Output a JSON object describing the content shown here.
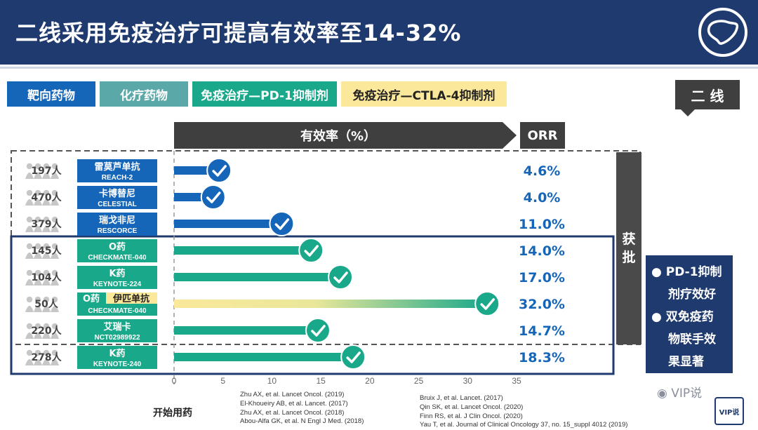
{
  "header": {
    "title": "二线采用免疫治疗可提高有效率至14-32%"
  },
  "legend": [
    {
      "label": "靶向药物",
      "color": "#1565b8"
    },
    {
      "label": "化疗药物",
      "color": "#5aa9a8"
    },
    {
      "label": "免疫治疗—PD-1抑制剂",
      "color": "#1aa88a"
    },
    {
      "label": "免疫治疗—CTLA-4抑制剂",
      "color": "#fbe89a"
    }
  ],
  "line_tag": "二 线",
  "axis_banner": "有效率（%）",
  "orr_banner": "ORR",
  "approved_label": [
    "获",
    "批"
  ],
  "notes": {
    "bullet1_a": "PD-1抑制",
    "bullet1_b": "剂疗效好",
    "bullet2_a": "双免疫药",
    "bullet2_b": "物联手效",
    "bullet2_c": "果显著"
  },
  "start_label": "开始用药",
  "references_left": [
    "Zhu AX, et al. Lancet Oncol. (2019)",
    "El-Khoueiry AB, et al. Lancet. (2017)",
    "Zhu AX, et al. Lancet Oncol. (2018)",
    "Abou-Alfa GK, et al. N Engl J Med. (2018)"
  ],
  "references_right": [
    "Bruix J, et al. Lancet. (2017)",
    "Qin SK, et al. Lancet Oncol. (2020)",
    "Finn RS, et al. J Clin Oncol. (2020)",
    "Yau T, et al. Journal of Clinical Oncology 37, no. 15_suppl 4012 (2019)"
  ],
  "watermark": "VIP说",
  "watermark_icon": "VIP说",
  "colors": {
    "navy": "#1f3a6e",
    "target_blue": "#1565b8",
    "pd1_green": "#1aa88a",
    "ctla4_yellow": "#fbe89a",
    "orr_text": "#1565b8"
  },
  "chart_data": {
    "type": "bar",
    "orientation": "horizontal",
    "xlabel": "有效率（%）",
    "xlim": [
      0,
      35
    ],
    "xticks": [
      0,
      5,
      10,
      15,
      20,
      25,
      30,
      35
    ],
    "rows": [
      {
        "n": "197人",
        "drug": "雷莫芦单抗",
        "trial": "REACH-2",
        "drug_type": "target",
        "value": 4.6,
        "orr": "4.6%"
      },
      {
        "n": "470人",
        "drug": "卡博替尼",
        "trial": "CELESTIAL",
        "drug_type": "target",
        "value": 4.0,
        "orr": "4.0%"
      },
      {
        "n": "379人",
        "drug": "瑞戈非尼",
        "trial": "RESCORCE",
        "drug_type": "target",
        "value": 11.0,
        "orr": "11.0%"
      },
      {
        "n": "145人",
        "drug": "O药",
        "trial": "CHECKMATE-040",
        "drug_type": "pd1",
        "value": 14.0,
        "orr": "14.0%"
      },
      {
        "n": "104人",
        "drug": "K药",
        "trial": "KEYNOTE-224",
        "drug_type": "pd1",
        "value": 17.0,
        "orr": "17.0%"
      },
      {
        "n": "50人",
        "drug": "O药",
        "drug2": "伊匹单抗",
        "trial": "CHECKMATE-040",
        "drug_type": "combo",
        "value": 32.0,
        "orr": "32.0%"
      },
      {
        "n": "220人",
        "drug": "艾瑞卡",
        "trial": "NCT02989922",
        "drug_type": "pd1",
        "value": 14.7,
        "orr": "14.7%"
      },
      {
        "n": "278人",
        "drug": "K药",
        "trial": "KEYNOTE-240",
        "drug_type": "pd1",
        "value": 18.3,
        "orr": "18.3%"
      }
    ]
  }
}
